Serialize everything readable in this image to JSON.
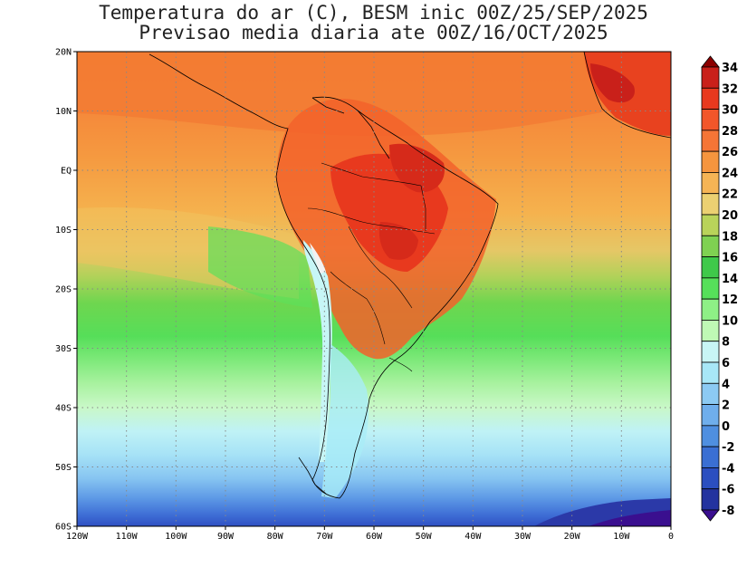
{
  "title": {
    "line1": "Temperatura do ar (C), BESM inic 00Z/25/SEP/2025",
    "line2": "Previsao media diaria ate 00Z/16/OCT/2025"
  },
  "map": {
    "lon_range": [
      -120,
      0
    ],
    "lat_range": [
      -60,
      20
    ],
    "lat_labels": [
      "20N",
      "10N",
      "EQ",
      "10S",
      "20S",
      "30S",
      "40S",
      "50S",
      "60S"
    ],
    "lon_labels": [
      "120W",
      "110W",
      "100W",
      "90W",
      "80W",
      "70W",
      "60W",
      "50W",
      "40W",
      "30W",
      "20W",
      "10W",
      "0"
    ],
    "gridlines": "dotted"
  },
  "colorbar": {
    "levels": [
      "34",
      "32",
      "30",
      "28",
      "26",
      "24",
      "22",
      "20",
      "18",
      "16",
      "14",
      "12",
      "10",
      "8",
      "6",
      "4",
      "2",
      "0",
      "-2",
      "-4",
      "-6",
      "-8"
    ],
    "colors": [
      "#8b0000",
      "#c9201a",
      "#e8391e",
      "#f2562a",
      "#f57536",
      "#f5953e",
      "#f5b455",
      "#ebd072",
      "#b9d35a",
      "#7fd152",
      "#3fc94a",
      "#56e05a",
      "#8ef086",
      "#bff9b5",
      "#c8f5f5",
      "#a8e7f7",
      "#8ccaf3",
      "#6faeec",
      "#4f8fe0",
      "#3a6fd3",
      "#2b4fc0",
      "#23339f",
      "#3a0f8f"
    ]
  }
}
